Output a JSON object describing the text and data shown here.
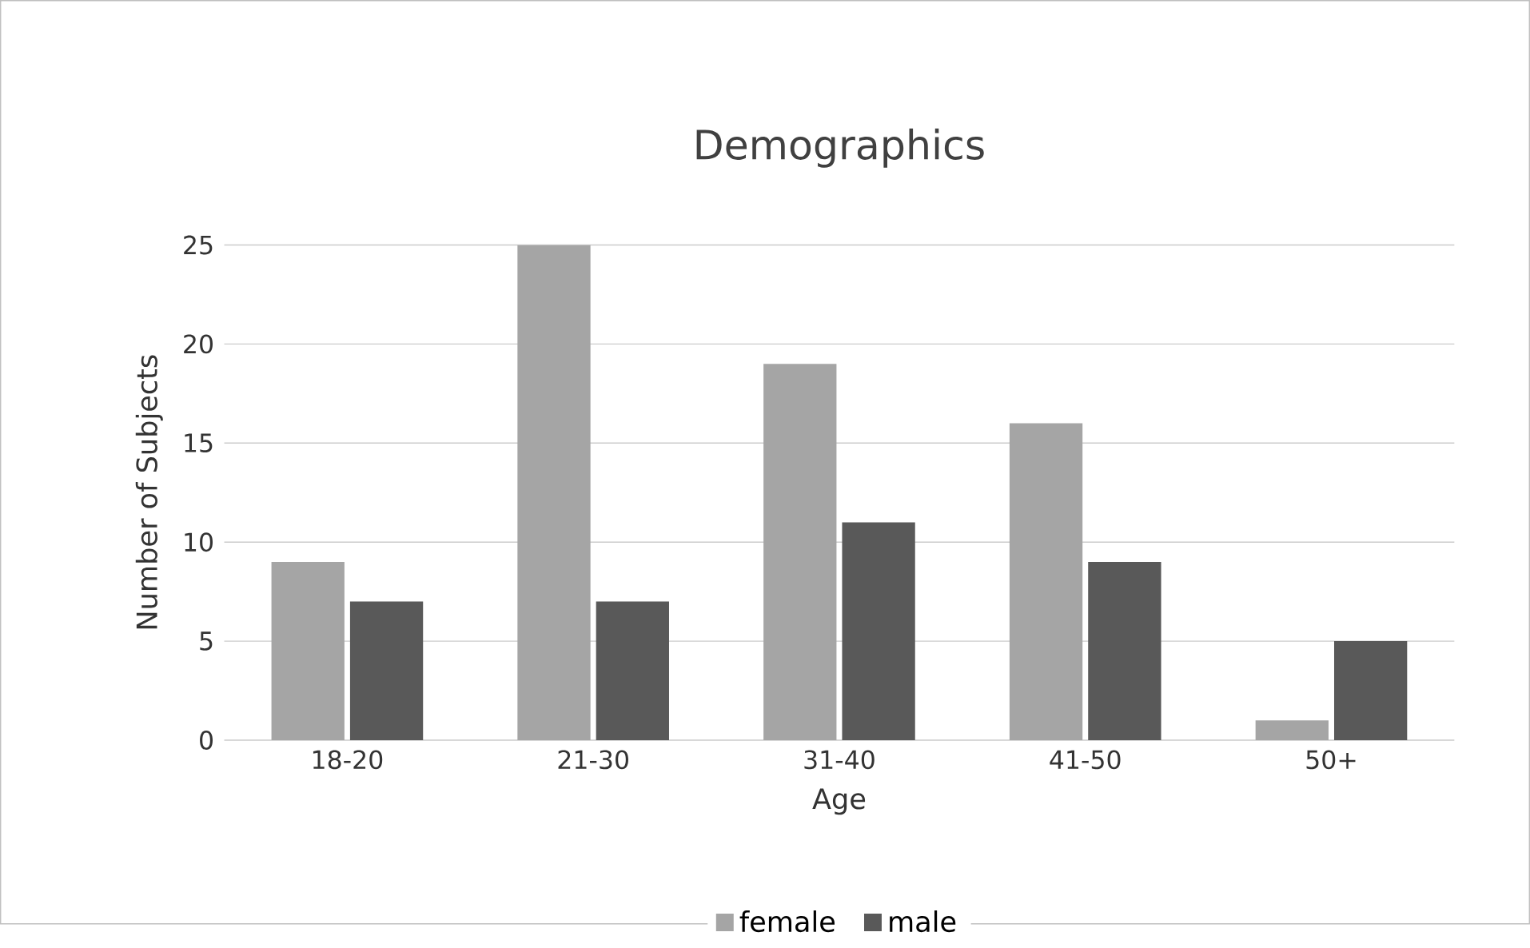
{
  "chart_data": {
    "type": "bar",
    "title": "Demographics",
    "xlabel": "Age",
    "ylabel": "Number of Subjects",
    "categories": [
      "18-20",
      "21-30",
      "31-40",
      "41-50",
      "50+"
    ],
    "series": [
      {
        "name": "female",
        "color": "#a5a5a5",
        "values": [
          9,
          25,
          19,
          16,
          1
        ]
      },
      {
        "name": "male",
        "color": "#595959",
        "values": [
          7,
          7,
          11,
          9,
          5
        ]
      }
    ],
    "ylim": [
      0,
      25
    ],
    "yticks": [
      0,
      5,
      10,
      15,
      20,
      25
    ],
    "grid": "y",
    "legend": "bottom"
  }
}
